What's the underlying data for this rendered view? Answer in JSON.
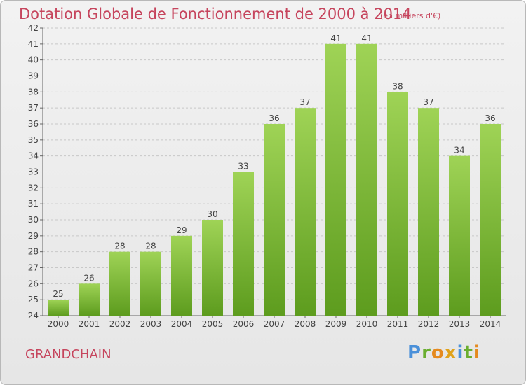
{
  "title": "Dotation Globale de Fonctionnement de 2000 à 2014",
  "subtitle": "(en milliers d'€)",
  "commune": "GRANDCHAIN",
  "logo": {
    "p": "P",
    "r": "r",
    "o": "o",
    "x": "x",
    "i1": "i",
    "t": "t",
    "i2": "i"
  },
  "colors": {
    "title": "#c6455d",
    "bar_top": "#9fd356",
    "bar_bottom": "#5d9c1e"
  },
  "chart_data": {
    "type": "bar",
    "categories": [
      "2000",
      "2001",
      "2002",
      "2003",
      "2004",
      "2005",
      "2006",
      "2007",
      "2008",
      "2009",
      "2010",
      "2011",
      "2012",
      "2013",
      "2014"
    ],
    "values": [
      25,
      26,
      28,
      28,
      29,
      30,
      33,
      36,
      37,
      41,
      41,
      38,
      37,
      34,
      36
    ],
    "ylim": [
      24,
      42
    ],
    "yticks": [
      24,
      25,
      26,
      27,
      28,
      29,
      30,
      31,
      32,
      33,
      34,
      35,
      36,
      37,
      38,
      39,
      40,
      41,
      42
    ],
    "grid": true
  }
}
